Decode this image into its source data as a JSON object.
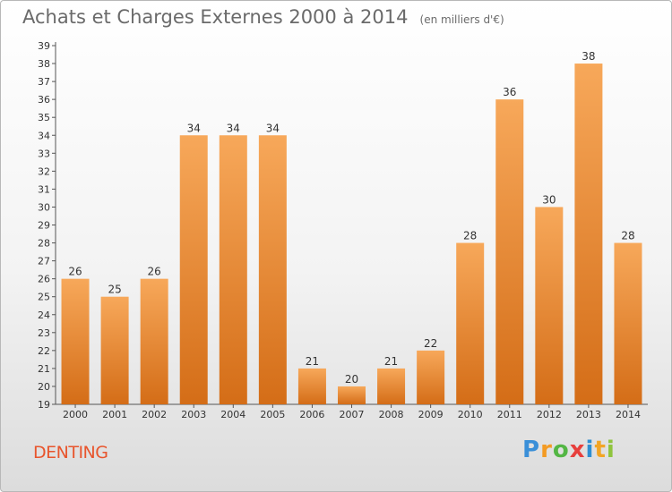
{
  "header": {
    "title": "Achats et Charges Externes 2000 à 2014",
    "subtitle": "(en milliers d'€)"
  },
  "commune": "DENTING",
  "logo": {
    "letters": [
      "P",
      "r",
      "o",
      "x",
      "i",
      "t",
      "i"
    ]
  },
  "colors": {
    "bar_light": "#f7a85a",
    "bar_dark": "#d46d17",
    "commune": "#e8552d"
  },
  "chart_data": {
    "type": "bar",
    "title": "Achats et Charges Externes 2000 à 2014",
    "subtitle": "(en milliers d'€)",
    "categories": [
      "2000",
      "2001",
      "2002",
      "2003",
      "2004",
      "2005",
      "2006",
      "2007",
      "2008",
      "2009",
      "2010",
      "2011",
      "2012",
      "2013",
      "2014"
    ],
    "values": [
      26,
      25,
      26,
      34,
      34,
      34,
      21,
      20,
      21,
      22,
      28,
      36,
      30,
      38,
      28
    ],
    "ylim": [
      19,
      39
    ],
    "yticks": [
      19,
      20,
      21,
      22,
      23,
      24,
      25,
      26,
      27,
      28,
      29,
      30,
      31,
      32,
      33,
      34,
      35,
      36,
      37,
      38,
      39
    ],
    "grid": false,
    "data_labels": true
  }
}
